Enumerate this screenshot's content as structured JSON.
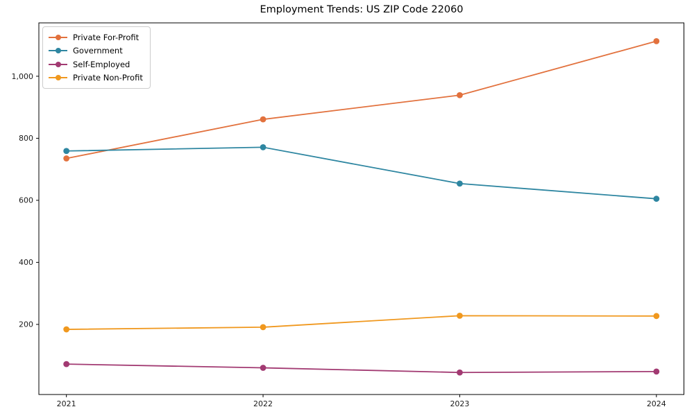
{
  "chart_data": {
    "type": "line",
    "title": "Employment Trends: US ZIP Code 22060",
    "categories": [
      "2021",
      "2022",
      "2023",
      "2024"
    ],
    "series": [
      {
        "name": "Private For-Profit",
        "color": "#e2713d",
        "values": [
          735,
          861,
          939,
          1113
        ]
      },
      {
        "name": "Government",
        "color": "#2e86a1",
        "values": [
          759,
          771,
          654,
          605
        ]
      },
      {
        "name": "Self-Employed",
        "color": "#a23a72",
        "values": [
          72,
          60,
          45,
          48
        ]
      },
      {
        "name": "Private Non-Profit",
        "color": "#f0981e",
        "values": [
          184,
          191,
          228,
          227
        ]
      }
    ],
    "yticks": [
      200,
      400,
      600,
      800,
      1000
    ],
    "ytick_labels": [
      "200",
      "400",
      "600",
      "800",
      "1,000"
    ],
    "ylim": [
      -26,
      1172
    ],
    "x_margin": 0.14,
    "xlabel": "",
    "ylabel": "",
    "grid": false,
    "legend_position": "upper left",
    "axis_color": "#000000",
    "tick_label_color": "#1a1a1a",
    "marker": "circle",
    "line_width": 1.8,
    "marker_radius": 4.4
  }
}
